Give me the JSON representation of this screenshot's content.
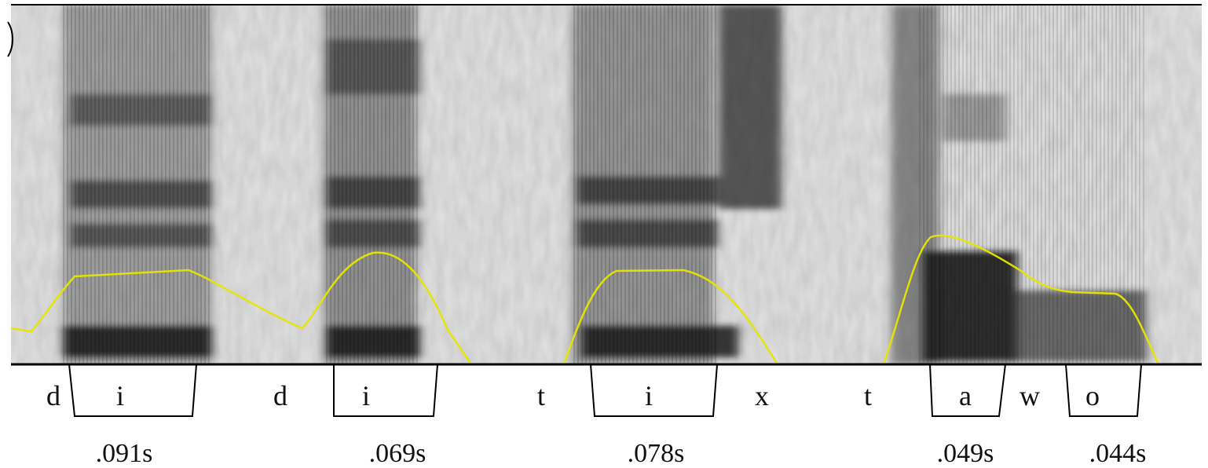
{
  "segments": [
    {
      "label": "d",
      "bracketed": false
    },
    {
      "label": "i",
      "bracketed": true
    },
    {
      "label": "d",
      "bracketed": false
    },
    {
      "label": "i",
      "bracketed": true
    },
    {
      "label": "t",
      "bracketed": false
    },
    {
      "label": "i",
      "bracketed": true
    },
    {
      "label": "x",
      "bracketed": false
    },
    {
      "label": "t",
      "bracketed": false
    },
    {
      "label": "a",
      "bracketed": true
    },
    {
      "label": "w",
      "bracketed": false
    },
    {
      "label": "o",
      "bracketed": true
    }
  ],
  "durations": [
    ".091s",
    ".069s",
    ".078s",
    ".049s",
    ".044s"
  ],
  "colors": {
    "pitch_track": "#e6e600",
    "spectrogram_light": "#cfcfcf",
    "spectrogram_dark": "#1e1e1e",
    "axis": "#000000"
  }
}
